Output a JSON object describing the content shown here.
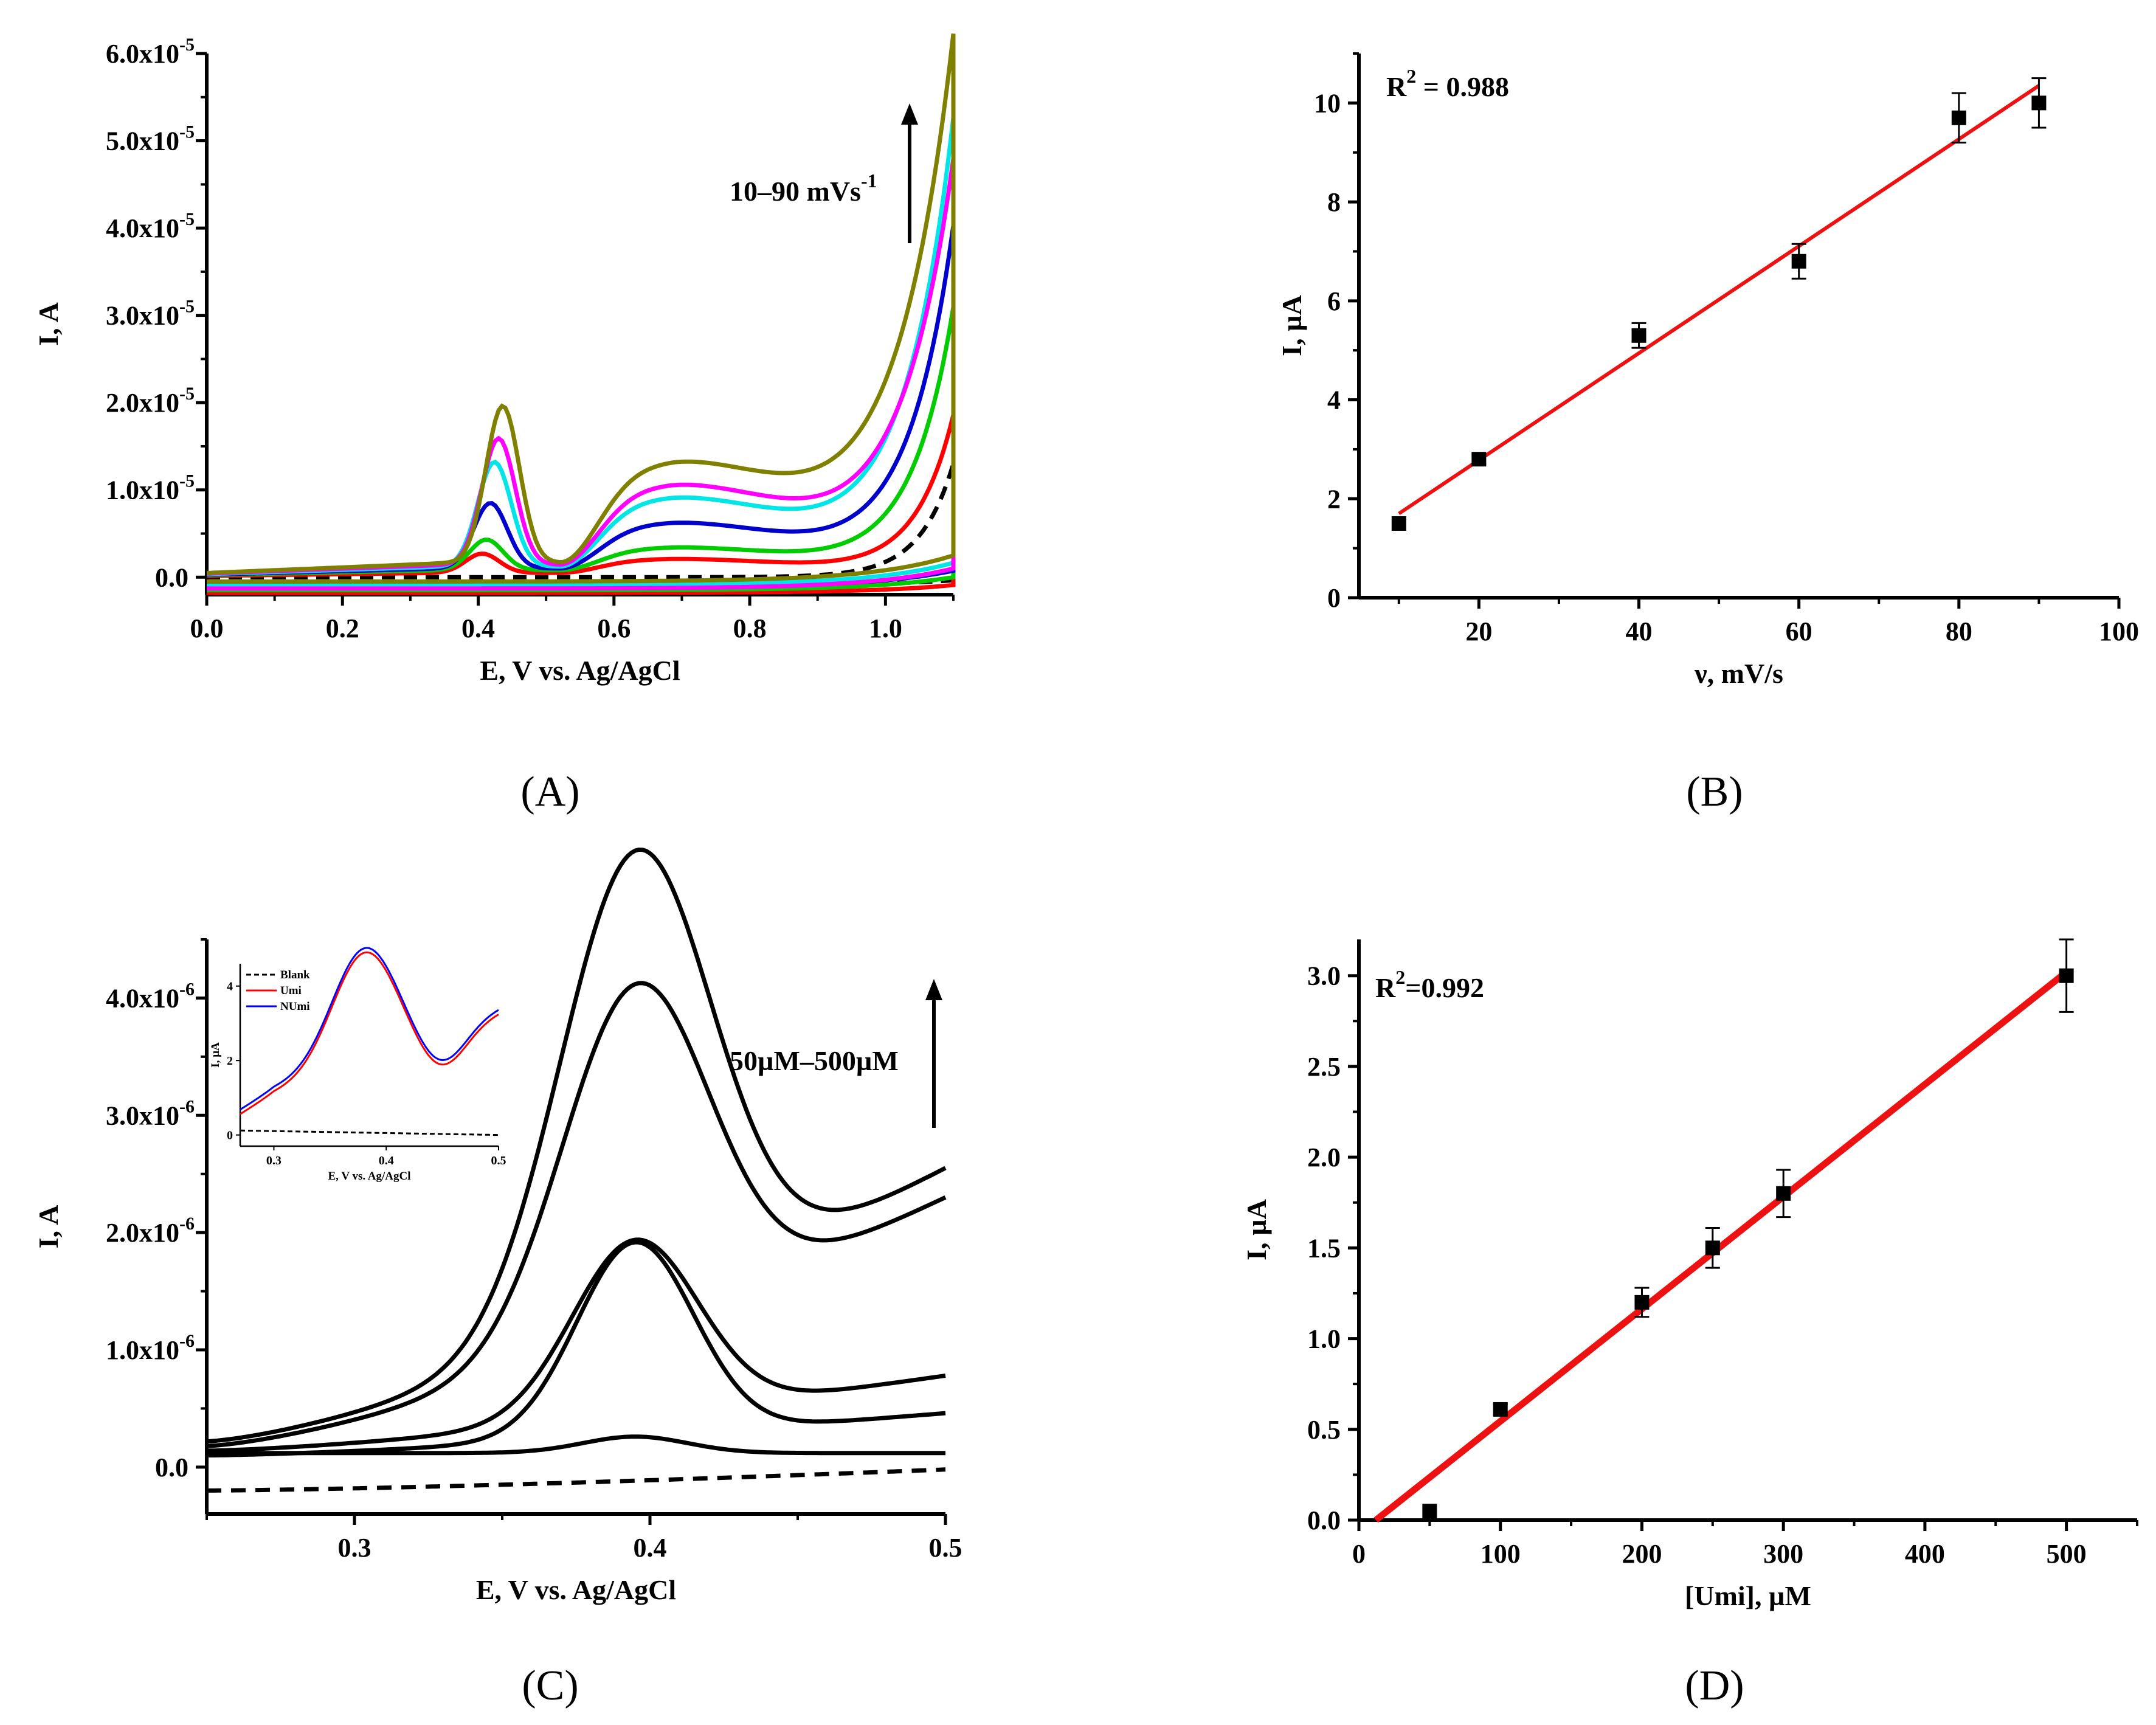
{
  "panels": {
    "A": {
      "label": "(A)",
      "annotation": "10–90 mVs",
      "annotation_sup": "-1"
    },
    "B": {
      "label": "(B)",
      "r2_text": "R",
      "r2_sup": "2",
      "r2_rest": " = 0.988"
    },
    "C": {
      "label": "(C)",
      "annotation": "50µM–500µM"
    },
    "D": {
      "label": "(D)",
      "r2_text": "R",
      "r2_sup": "2",
      "r2_rest": "=0.992"
    }
  },
  "chart_data": [
    {
      "id": "A",
      "type": "line",
      "xlabel": "E, V vs. Ag/AgCl",
      "ylabel": "I, A",
      "xlim": [
        0.0,
        1.1
      ],
      "ylim": [
        -2e-06,
        6e-05
      ],
      "xticks": [
        0.0,
        0.2,
        0.4,
        0.6,
        0.8,
        1.0
      ],
      "xtick_labels": [
        "0.0",
        "0.2",
        "0.4",
        "0.6",
        "0.8",
        "1.0"
      ],
      "yticks": [
        0.0,
        1e-05,
        2e-05,
        3e-05,
        4e-05,
        5e-05,
        6e-05
      ],
      "ytick_labels": [
        "0.0",
        "1.0x10",
        "2.0x10",
        "3.0x10",
        "4.0x10",
        "5.0x10",
        "6.0x10"
      ],
      "ytick_exp": [
        "",
        "-5",
        "-5",
        "-5",
        "-5",
        "-5",
        "-5"
      ],
      "series": [
        {
          "color": "#000000",
          "dashed": true,
          "peak1": 0.0,
          "peak2": 0.0,
          "base": 0.0,
          "tail": 1.3e-05,
          "ret": -1e-06
        },
        {
          "color": "#ff0000",
          "dashed": false,
          "peak1": 2.2e-06,
          "peak2": 1.6e-06,
          "base": 5e-07,
          "tail": 1.8e-05,
          "ret": -1.8e-06
        },
        {
          "color": "#00cc00",
          "dashed": false,
          "peak1": 3.5e-06,
          "peak2": 2.6e-06,
          "base": 8e-07,
          "tail": 3e-05,
          "ret": -1.5e-06
        },
        {
          "color": "#0000cc",
          "dashed": false,
          "peak1": 7.5e-06,
          "peak2": 5.2e-06,
          "base": 1e-06,
          "tail": 3.9e-05,
          "ret": -1.2e-06
        },
        {
          "color": "#00e5e5",
          "dashed": false,
          "peak1": 1.2e-05,
          "peak2": 7.8e-06,
          "base": 1.2e-06,
          "tail": 5.1e-05,
          "ret": -9e-07
        },
        {
          "color": "#ff00ff",
          "dashed": false,
          "peak1": 1.45e-05,
          "peak2": 9e-06,
          "base": 1.4e-06,
          "tail": 4.6e-05,
          "ret": -1.3e-06
        },
        {
          "color": "#808000",
          "dashed": false,
          "peak1": 1.8e-05,
          "peak2": 1.12e-05,
          "base": 1.6e-06,
          "tail": 6e-05,
          "ret": -5e-07
        }
      ]
    },
    {
      "id": "B",
      "type": "scatter",
      "xlabel": "ν, mV/s",
      "ylabel": "I, µA",
      "xlim": [
        5,
        100
      ],
      "ylim": [
        0,
        11
      ],
      "xticks": [
        20,
        40,
        60,
        80,
        100
      ],
      "yticks": [
        0,
        2,
        4,
        6,
        8,
        10
      ],
      "x": [
        10,
        20,
        40,
        60,
        80,
        90
      ],
      "y": [
        1.5,
        2.8,
        5.3,
        6.8,
        9.7,
        10.0
      ],
      "yerr": [
        0.0,
        0.1,
        0.25,
        0.35,
        0.5,
        0.5
      ],
      "fit": {
        "x0": 10,
        "y0": 1.7,
        "x1": 90,
        "y1": 10.35,
        "color": "#ee1111"
      }
    },
    {
      "id": "C",
      "type": "line",
      "xlabel": "E, V vs. Ag/AgCl",
      "ylabel": "I, A",
      "xlim": [
        0.25,
        0.5
      ],
      "ylim": [
        -4e-07,
        4.5e-06
      ],
      "xticks": [
        0.3,
        0.4,
        0.5
      ],
      "yticks": [
        0.0,
        1e-06,
        2e-06,
        3e-06,
        4e-06
      ],
      "ytick_labels": [
        "0.0",
        "1.0x10",
        "2.0x10",
        "3.0x10",
        "4.0x10"
      ],
      "ytick_exp": [
        "",
        "-6",
        "-6",
        "-6",
        "-6"
      ],
      "series": [
        {
          "color": "#000000",
          "dashed": true,
          "start": -2e-07,
          "end": -2e-08,
          "peak": 0.0,
          "sigma": 0.03,
          "tailrise": 0.0
        },
        {
          "color": "#000000",
          "dashed": false,
          "start": 1.2e-07,
          "end": 1.2e-07,
          "peak": 1.4e-07,
          "sigma": 0.025,
          "tailrise": 0.0
        },
        {
          "color": "#000000",
          "dashed": false,
          "start": 1.4e-07,
          "end": 7.8e-07,
          "peak": 1.5e-06,
          "sigma": 0.03,
          "tailrise": 0.0
        },
        {
          "color": "#000000",
          "dashed": false,
          "start": 1e-07,
          "end": 4.6e-07,
          "peak": 1.65e-06,
          "sigma": 0.028,
          "tailrise": 0.0
        },
        {
          "color": "#000000",
          "dashed": false,
          "start": 1.8e-07,
          "end": 2.3e-06,
          "peak": 2.95e-06,
          "sigma": 0.035,
          "tailrise": 0.0
        },
        {
          "color": "#000000",
          "dashed": false,
          "start": 2.2e-07,
          "end": 2.55e-06,
          "peak": 3.95e-06,
          "sigma": 0.036,
          "tailrise": 0.0
        }
      ],
      "inset": {
        "xlabel": "E, V vs. Ag/AgCl",
        "ylabel": "I, µA",
        "xlim": [
          0.27,
          0.5
        ],
        "ylim": [
          -0.3,
          4.6
        ],
        "xticks": [
          0.3,
          0.4,
          0.5
        ],
        "yticks": [
          0,
          2,
          4
        ],
        "legend": [
          {
            "label": "Blank",
            "color": "#000000",
            "dashed": true
          },
          {
            "label": "Umi",
            "color": "#ff0000",
            "dashed": false
          },
          {
            "label": "NUmi",
            "color": "#0000ff",
            "dashed": false
          }
        ]
      }
    },
    {
      "id": "D",
      "type": "scatter",
      "xlabel": "[Umi], µM",
      "ylabel": "I, µA",
      "xlim": [
        0,
        550
      ],
      "ylim": [
        0,
        3.2
      ],
      "xticks": [
        0,
        100,
        200,
        300,
        400,
        500
      ],
      "yticks": [
        0.0,
        0.5,
        1.0,
        1.5,
        2.0,
        2.5,
        3.0
      ],
      "ytick_labels": [
        "0.0",
        "0.5",
        "1.0",
        "1.5",
        "2.0",
        "2.5",
        "3.0"
      ],
      "x": [
        50,
        100,
        200,
        250,
        300,
        500
      ],
      "y": [
        0.05,
        0.61,
        1.2,
        1.5,
        1.8,
        3.0
      ],
      "yerr": [
        0.0,
        0.03,
        0.08,
        0.11,
        0.13,
        0.2
      ],
      "fit": {
        "x0": 12,
        "y0": 0.0,
        "x1": 500,
        "y1": 3.02,
        "color": "#ee1111"
      }
    }
  ]
}
